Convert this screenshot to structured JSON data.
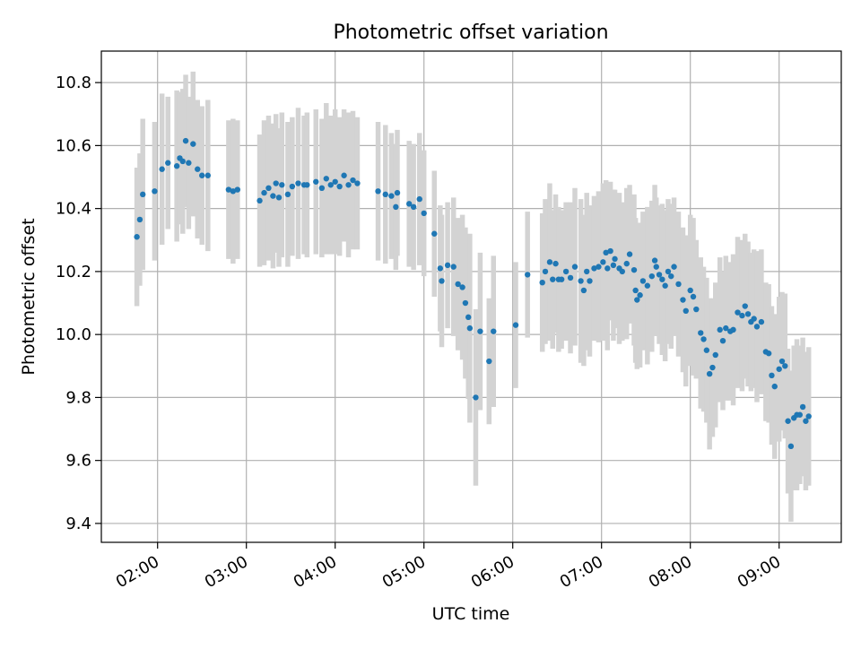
{
  "chart_data": {
    "type": "scatter",
    "title": "Photometric offset variation",
    "xlabel": "UTC time",
    "ylabel": "Photometric offset",
    "xlim": [
      "01:22",
      "09:42"
    ],
    "ylim": [
      9.34,
      10.9
    ],
    "x_ticks": [
      "02:00",
      "03:00",
      "04:00",
      "05:00",
      "06:00",
      "07:00",
      "08:00",
      "09:00"
    ],
    "y_ticks": [
      "9.4",
      "9.6",
      "9.8",
      "10.0",
      "10.2",
      "10.4",
      "10.6",
      "10.8"
    ],
    "grid": true,
    "legend": "none",
    "colors": {
      "points": "#1f77b4",
      "error_bars": "#d3d3d3",
      "grid": "#b0b0b0"
    },
    "series": [
      {
        "x": [
          "01:46",
          "01:48",
          "01:50",
          "01:58",
          "02:03",
          "02:07",
          "02:13",
          "02:15",
          "02:17",
          "02:19",
          "02:21",
          "02:24",
          "02:27",
          "02:30",
          "02:34",
          "02:48",
          "02:51",
          "02:54",
          "03:09",
          "03:12",
          "03:15",
          "03:18",
          "03:20",
          "03:22",
          "03:24",
          "03:28",
          "03:31",
          "03:35",
          "03:39",
          "03:41",
          "03:47",
          "03:51",
          "03:54",
          "03:57",
          "04:00",
          "04:03",
          "04:06",
          "04:09",
          "04:12",
          "04:15",
          "04:29",
          "04:34",
          "04:38",
          "04:41",
          "04:42",
          "04:50",
          "04:53",
          "04:57",
          "05:00",
          "05:07",
          "05:11",
          "05:12",
          "05:16",
          "05:20",
          "05:23",
          "05:26",
          "05:28",
          "05:30",
          "05:31",
          "05:35",
          "05:38",
          "05:44",
          "05:47",
          "06:02",
          "06:10",
          "06:20",
          "06:22",
          "06:25",
          "06:27",
          "06:29",
          "06:31",
          "06:33",
          "06:36",
          "06:39",
          "06:42",
          "06:46",
          "06:48",
          "06:50",
          "06:52",
          "06:55",
          "06:58",
          "07:01",
          "07:03",
          "07:04",
          "07:06",
          "07:08",
          "07:09",
          "07:12",
          "07:14",
          "07:17",
          "07:19",
          "07:22",
          "07:23",
          "07:24",
          "07:26",
          "07:28",
          "07:31",
          "07:34",
          "07:36",
          "07:37",
          "07:39",
          "07:41",
          "07:43",
          "07:45",
          "07:47",
          "07:49",
          "07:52",
          "07:55",
          "07:57",
          "08:00",
          "08:02",
          "08:04",
          "08:07",
          "08:09",
          "08:11",
          "08:13",
          "08:15",
          "08:17",
          "08:20",
          "08:22",
          "08:24",
          "08:27",
          "08:29",
          "08:32",
          "08:35",
          "08:37",
          "08:39",
          "08:41",
          "08:43",
          "08:45",
          "08:48",
          "08:51",
          "08:53",
          "08:55",
          "08:57",
          "09:00",
          "09:02",
          "09:04",
          "09:06",
          "09:08",
          "09:10",
          "09:12",
          "09:14",
          "09:16",
          "09:18",
          "09:20"
        ],
        "y": [
          10.31,
          10.365,
          10.445,
          10.455,
          10.525,
          10.545,
          10.535,
          10.56,
          10.55,
          10.615,
          10.545,
          10.605,
          10.525,
          10.505,
          10.505,
          10.46,
          10.455,
          10.46,
          10.425,
          10.45,
          10.465,
          10.44,
          10.48,
          10.435,
          10.475,
          10.445,
          10.47,
          10.48,
          10.475,
          10.475,
          10.485,
          10.465,
          10.495,
          10.475,
          10.485,
          10.47,
          10.505,
          10.475,
          10.49,
          10.48,
          10.455,
          10.445,
          10.44,
          10.405,
          10.45,
          10.415,
          10.405,
          10.43,
          10.385,
          10.32,
          10.21,
          10.17,
          10.22,
          10.215,
          10.16,
          10.15,
          10.1,
          10.055,
          10.02,
          9.8,
          10.01,
          9.915,
          10.01,
          10.03,
          10.19,
          10.165,
          10.2,
          10.23,
          10.175,
          10.225,
          10.175,
          10.175,
          10.2,
          10.18,
          10.215,
          10.17,
          10.14,
          10.2,
          10.17,
          10.21,
          10.215,
          10.23,
          10.26,
          10.21,
          10.265,
          10.22,
          10.24,
          10.21,
          10.2,
          10.225,
          10.255,
          10.205,
          10.14,
          10.11,
          10.125,
          10.17,
          10.155,
          10.185,
          10.235,
          10.215,
          10.19,
          10.175,
          10.155,
          10.2,
          10.185,
          10.215,
          10.16,
          10.11,
          10.075,
          10.14,
          10.12,
          10.08,
          10.005,
          9.985,
          9.95,
          9.875,
          9.895,
          9.935,
          10.015,
          9.98,
          10.02,
          10.01,
          10.015,
          10.07,
          10.06,
          10.09,
          10.065,
          10.04,
          10.05,
          10.025,
          10.04,
          9.945,
          9.94,
          9.87,
          9.835,
          9.89,
          9.915,
          9.9,
          9.725,
          9.645,
          9.735,
          9.745,
          9.745,
          9.77,
          9.725,
          9.74
        ],
        "err": [
          0.22,
          0.21,
          0.24,
          0.22,
          0.24,
          0.21,
          0.24,
          0.21,
          0.23,
          0.21,
          0.21,
          0.23,
          0.22,
          0.22,
          0.24,
          0.22,
          0.23,
          0.22,
          0.21,
          0.23,
          0.23,
          0.23,
          0.22,
          0.22,
          0.23,
          0.23,
          0.22,
          0.24,
          0.22,
          0.23,
          0.23,
          0.22,
          0.24,
          0.22,
          0.23,
          0.22,
          0.21,
          0.23,
          0.22,
          0.21,
          0.22,
          0.22,
          0.2,
          0.2,
          0.2,
          0.2,
          0.2,
          0.21,
          0.2,
          0.2,
          0.2,
          0.21,
          0.2,
          0.22,
          0.21,
          0.23,
          0.24,
          0.26,
          0.3,
          0.28,
          0.25,
          0.2,
          0.24,
          0.2,
          0.2,
          0.22,
          0.23,
          0.25,
          0.22,
          0.22,
          0.23,
          0.22,
          0.22,
          0.24,
          0.25,
          0.26,
          0.24,
          0.25,
          0.24,
          0.23,
          0.24,
          0.25,
          0.23,
          0.26,
          0.22,
          0.24,
          0.22,
          0.24,
          0.22,
          0.24,
          0.22,
          0.24,
          0.23,
          0.22,
          0.23,
          0.22,
          0.25,
          0.24,
          0.24,
          0.22,
          0.22,
          0.24,
          0.24,
          0.23,
          0.23,
          0.22,
          0.23,
          0.23,
          0.24,
          0.24,
          0.25,
          0.22,
          0.24,
          0.23,
          0.23,
          0.24,
          0.22,
          0.23,
          0.23,
          0.22,
          0.23,
          0.22,
          0.24,
          0.24,
          0.24,
          0.23,
          0.23,
          0.22,
          0.22,
          0.24,
          0.23,
          0.22,
          0.22,
          0.22,
          0.23,
          0.23,
          0.22,
          0.23,
          0.23,
          0.24,
          0.23,
          0.24,
          0.22,
          0.22,
          0.22,
          0.22
        ]
      }
    ]
  }
}
